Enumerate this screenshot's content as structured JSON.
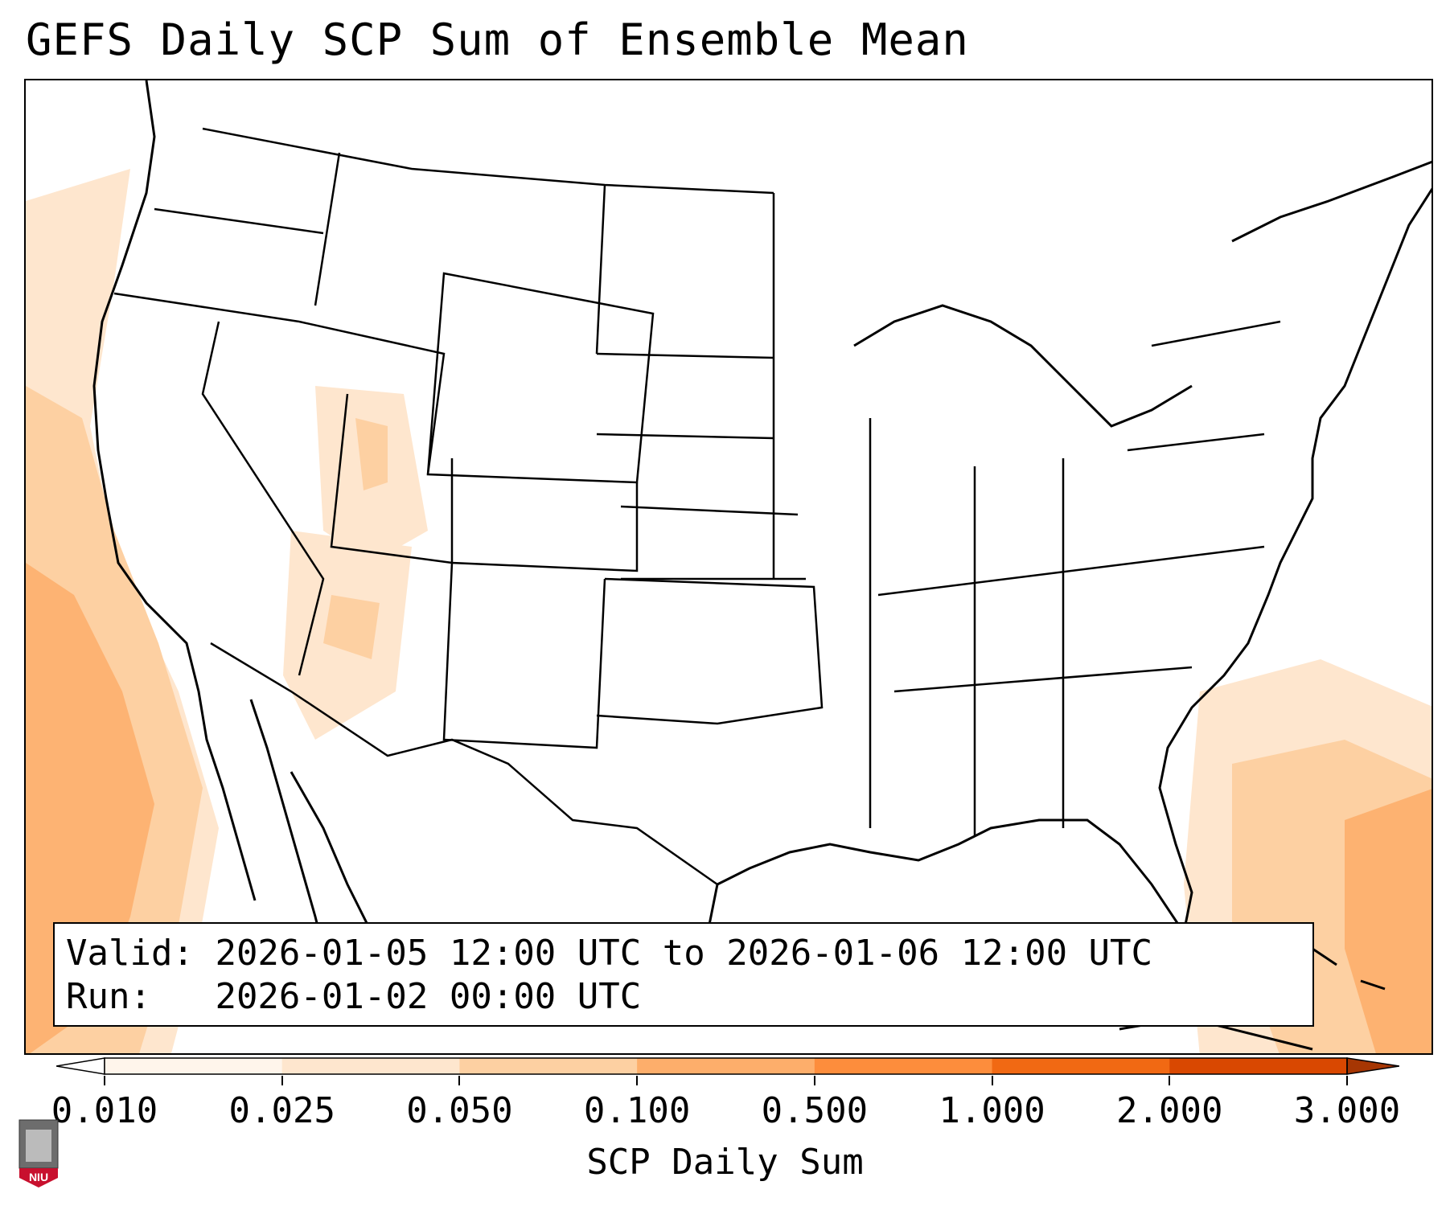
{
  "title": "GEFS Daily SCP Sum of Ensemble Mean",
  "info": {
    "valid_label": "Valid:",
    "valid_value": "2026-01-05 12:00 UTC to 2026-01-06 12:00 UTC",
    "run_label": "Run:",
    "run_value": "2026-01-02 00:00 UTC"
  },
  "colorbar": {
    "label": "SCP Daily Sum",
    "ticks": [
      "0.010",
      "0.025",
      "0.050",
      "0.100",
      "0.500",
      "1.000",
      "2.000",
      "3.000"
    ],
    "colors": [
      "#fff5eb",
      "#fee6ce",
      "#fdd0a2",
      "#fdae6b",
      "#fd8d3c",
      "#f16913",
      "#d94801",
      "#a63603"
    ]
  },
  "logo": {
    "text": "NIU",
    "color": "#c8102e"
  },
  "map": {
    "region": "CONUS",
    "shading": [
      {
        "area": "pacific-offshore",
        "level": "0.100"
      },
      {
        "area": "california-coast",
        "level": "0.050"
      },
      {
        "area": "utah",
        "level": "0.050"
      },
      {
        "area": "arizona",
        "level": "0.025"
      },
      {
        "area": "atlantic-offshore-east-of-florida",
        "level": "0.100"
      },
      {
        "area": "bahamas",
        "level": "0.050"
      }
    ]
  }
}
